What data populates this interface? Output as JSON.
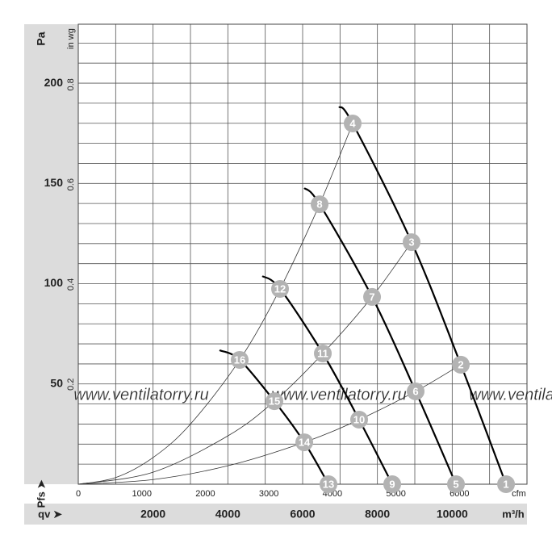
{
  "chart_data": {
    "type": "line",
    "y_label": "Pa",
    "y2_label": "in wg",
    "x_label": "m³/h",
    "x2_label": "cfm",
    "x_axis_name": "qv ➤",
    "y_axis_name": "Pfs ➤",
    "watermark": "www.ventilatorry.ru",
    "xlim": [
      0,
      12000
    ],
    "xticks": [
      2000,
      4000,
      6000,
      8000,
      10000
    ],
    "x_grid": [
      0,
      1000,
      2000,
      3000,
      4000,
      5000,
      6000,
      7000,
      8000,
      9000,
      10000,
      11000,
      12000
    ],
    "x2lim": [
      0,
      7063
    ],
    "x2ticks": [
      0,
      1000,
      2000,
      3000,
      4000,
      5000,
      6000
    ],
    "ylim": [
      0,
      229.4
    ],
    "yticks": [
      50,
      100,
      150,
      200
    ],
    "y_grid": [
      0,
      10,
      20,
      30,
      40,
      50,
      60,
      70,
      80,
      90,
      100,
      110,
      120,
      130,
      140,
      150,
      160,
      170,
      180,
      190,
      200,
      210,
      220
    ],
    "y2lim": [
      0,
      0.921
    ],
    "y2ticks": [
      0.2,
      0.4,
      0.6,
      0.8
    ],
    "fan_curves": [
      {
        "color": "#000000",
        "x": [
          6972,
          7338,
          8914,
          10231,
          11440
        ],
        "values": [
          188.3,
          179.9,
          120.7,
          59.6,
          0
        ]
      },
      {
        "color": "#000000",
        "x": [
          6044,
          6454,
          7857,
          9022,
          10101
        ],
        "values": [
          147.7,
          139.6,
          93.4,
          46.3,
          0
        ]
      },
      {
        "color": "#000000",
        "x": [
          4921,
          5396,
          6540,
          7511,
          8396
        ],
        "values": [
          103.8,
          97.4,
          65.2,
          32.2,
          0
        ]
      },
      {
        "color": "#000000",
        "x": [
          3777,
          4317,
          5245,
          6044,
          6691
        ],
        "values": [
          66.8,
          62.0,
          41.4,
          20.9,
          0
        ]
      }
    ],
    "system_curves": [
      {
        "color": "#333333",
        "x": [
          0,
          1000,
          2000,
          3000,
          4317,
          5396,
          6454,
          7338
        ],
        "values": [
          0,
          3.3,
          13.3,
          30,
          62.0,
          97.4,
          139.6,
          179.9
        ]
      },
      {
        "color": "#333333",
        "x": [
          0,
          2000,
          4000,
          5245,
          6540,
          7857,
          8914
        ],
        "values": [
          0,
          6.0,
          24.1,
          41.4,
          65.2,
          93.4,
          120.7
        ]
      },
      {
        "color": "#333333",
        "x": [
          0,
          2000,
          4000,
          6044,
          7511,
          9022,
          10231
        ],
        "values": [
          0,
          2.3,
          9.2,
          20.9,
          32.2,
          46.3,
          59.6
        ]
      }
    ],
    "points": [
      {
        "label": "1",
        "x": 11440,
        "y": 0
      },
      {
        "label": "2",
        "x": 10231,
        "y": 59.6
      },
      {
        "label": "3",
        "x": 8914,
        "y": 120.7
      },
      {
        "label": "4",
        "x": 7338,
        "y": 179.9
      },
      {
        "label": "5",
        "x": 10101,
        "y": 0
      },
      {
        "label": "6",
        "x": 9022,
        "y": 46.3
      },
      {
        "label": "7",
        "x": 7857,
        "y": 93.4
      },
      {
        "label": "8",
        "x": 6454,
        "y": 139.6
      },
      {
        "label": "9",
        "x": 8396,
        "y": 0
      },
      {
        "label": "10",
        "x": 7511,
        "y": 32.2
      },
      {
        "label": "11",
        "x": 6540,
        "y": 65.2
      },
      {
        "label": "12",
        "x": 5396,
        "y": 97.4
      },
      {
        "label": "13",
        "x": 6691,
        "y": 0
      },
      {
        "label": "14",
        "x": 6044,
        "y": 20.9
      },
      {
        "label": "15",
        "x": 5245,
        "y": 41.4
      },
      {
        "label": "16",
        "x": 4317,
        "y": 62.0
      }
    ]
  }
}
